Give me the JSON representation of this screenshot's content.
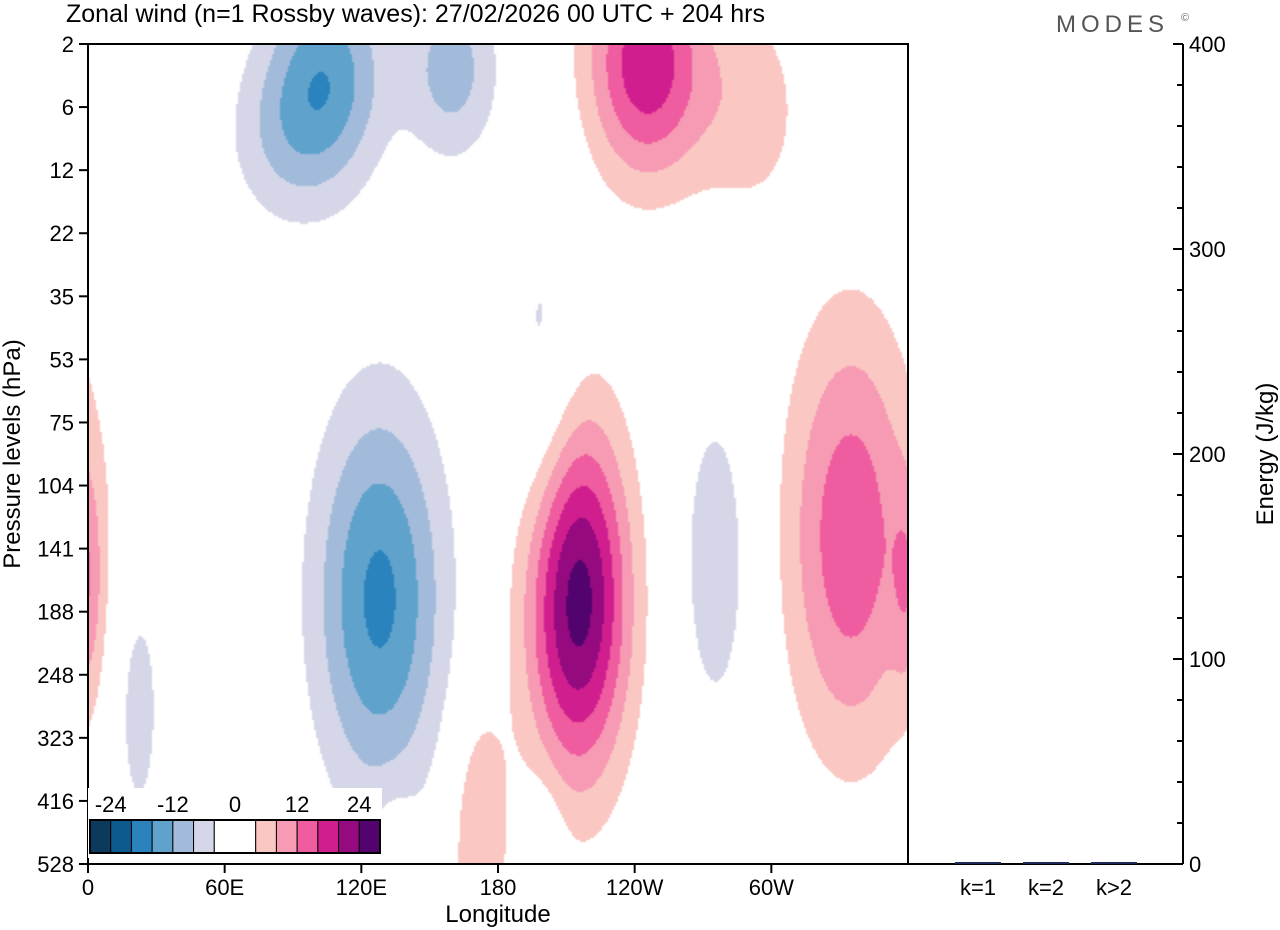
{
  "chart_data": {
    "type": "heatmap",
    "title": "Zonal wind (n=1 Rossby waves):  27/02/2026  00 UTC  + 204 hrs",
    "brand": "MODES",
    "brand_mark": "©",
    "xlabel": "Longitude",
    "ylabel": "Pressure levels (hPa)",
    "y2label": "Energy (J/kg)",
    "x_ticks": [
      {
        "lon": 0,
        "label": "0"
      },
      {
        "lon": 60,
        "label": "60E"
      },
      {
        "lon": 120,
        "label": "120E"
      },
      {
        "lon": 180,
        "label": "180"
      },
      {
        "lon": 240,
        "label": "120W"
      },
      {
        "lon": 300,
        "label": "60W"
      }
    ],
    "xlim": [
      0,
      360
    ],
    "pressure_levels": [
      "2",
      "6",
      "12",
      "22",
      "35",
      "53",
      "75",
      "104",
      "141",
      "188",
      "248",
      "323",
      "416",
      "528"
    ],
    "energy_ticks": [
      0,
      100,
      200,
      300,
      400
    ],
    "energy_minor_step": 20,
    "ylim_energy": [
      0,
      400
    ],
    "energy_bars": {
      "categories": [
        "k=1",
        "k=2",
        "k>2"
      ],
      "values": [
        0.5,
        0.4,
        0.8
      ]
    },
    "colorbar": {
      "labels": [
        {
          "value": -24,
          "label": "-24"
        },
        {
          "value": -12,
          "label": "-12"
        },
        {
          "value": 0,
          "label": "0"
        },
        {
          "value": 12,
          "label": "12"
        },
        {
          "value": 24,
          "label": "24"
        }
      ],
      "bins": [
        {
          "from": -28,
          "to": -24,
          "color": "#0b3a5c"
        },
        {
          "from": -24,
          "to": -20,
          "color": "#0d5b8c"
        },
        {
          "from": -20,
          "to": -16,
          "color": "#2b83bd"
        },
        {
          "from": -16,
          "to": -12,
          "color": "#5fa2cc"
        },
        {
          "from": -12,
          "to": -8,
          "color": "#a3bbdb"
        },
        {
          "from": -8,
          "to": -4,
          "color": "#d5d7e8"
        },
        {
          "from": -4,
          "to": 4,
          "color": "#ffffff"
        },
        {
          "from": 4,
          "to": 8,
          "color": "#fac7c3"
        },
        {
          "from": 8,
          "to": 12,
          "color": "#f79bb4"
        },
        {
          "from": 12,
          "to": 16,
          "color": "#ef5c9f"
        },
        {
          "from": 16,
          "to": 20,
          "color": "#d11e8e"
        },
        {
          "from": 20,
          "to": 24,
          "color": "#960a80"
        },
        {
          "from": 24,
          "to": 28,
          "color": "#52036e"
        }
      ]
    },
    "anomalies": [
      {
        "lon": 105,
        "level": 0.5,
        "amplitude": -14,
        "sigma_lon": 18,
        "sigma_level": 1.2
      },
      {
        "lon": 85,
        "level": 1.5,
        "amplitude": -6,
        "sigma_lon": 18,
        "sigma_level": 1.0
      },
      {
        "lon": 160,
        "level": 0.4,
        "amplitude": -10,
        "sigma_lon": 14,
        "sigma_level": 1.0
      },
      {
        "lon": 245,
        "level": 0.3,
        "amplitude": 19,
        "sigma_lon": 18,
        "sigma_level": 1.3
      },
      {
        "lon": 290,
        "level": 1.0,
        "amplitude": 6,
        "sigma_lon": 18,
        "sigma_level": 1.3
      },
      {
        "lon": 200,
        "level": 5.3,
        "amplitude": -6,
        "sigma_lon": 11,
        "sigma_level": 2.0
      },
      {
        "lon": 128,
        "level": 8.8,
        "amplitude": -17,
        "sigma_lon": 20,
        "sigma_level": 2.2
      },
      {
        "lon": 215,
        "level": 8.8,
        "amplitude": 26,
        "sigma_lon": 16,
        "sigma_level": 2.0
      },
      {
        "lon": 276,
        "level": 8.2,
        "amplitude": -6.5,
        "sigma_lon": 12,
        "sigma_level": 2.0
      },
      {
        "lon": 335,
        "level": 7.8,
        "amplitude": 15,
        "sigma_lon": 20,
        "sigma_level": 2.4
      },
      {
        "lon": 0,
        "level": 8.6,
        "amplitude": 6,
        "sigma_lon": 5,
        "sigma_level": 1.2
      },
      {
        "lon": 22,
        "level": 10.5,
        "amplitude": -6,
        "sigma_lon": 8,
        "sigma_level": 1.6
      },
      {
        "lon": 172,
        "level": 12.6,
        "amplitude": 8,
        "sigma_lon": 9,
        "sigma_level": 1.5
      },
      {
        "lon": 200,
        "level": 13.1,
        "amplitude": -5.5,
        "sigma_lon": 6,
        "sigma_level": 0.9
      },
      {
        "lon": 135,
        "level": 13.2,
        "amplitude": 5.5,
        "sigma_lon": 6,
        "sigma_level": 0.8
      }
    ]
  }
}
